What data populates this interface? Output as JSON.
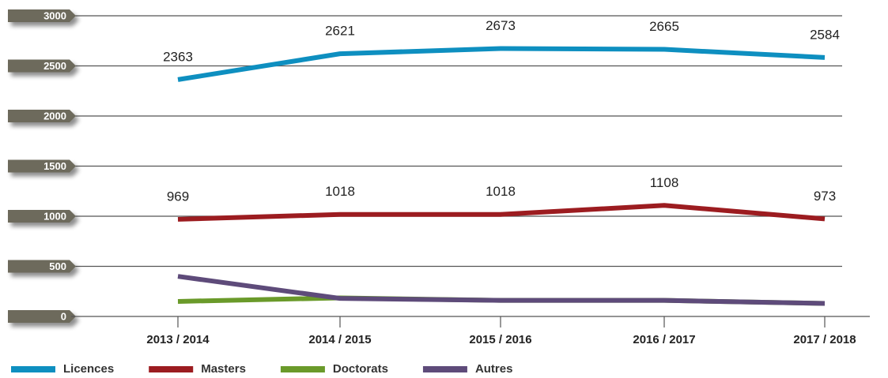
{
  "chart_data": {
    "type": "line",
    "categories": [
      "2013 / 2014",
      "2014 / 2015",
      "2015 / 2016",
      "2016 / 2017",
      "2017 / 2018"
    ],
    "series": [
      {
        "name": "Licences",
        "color": "#0e8fc0",
        "values": [
          2363,
          2621,
          2673,
          2665,
          2584
        ],
        "labels": true
      },
      {
        "name": "Masters",
        "color": "#9c1c20",
        "values": [
          969,
          1018,
          1018,
          1108,
          973
        ],
        "labels": true
      },
      {
        "name": "Doctorats",
        "color": "#6a9a2a",
        "values": [
          150,
          185,
          160,
          160,
          130
        ],
        "labels": false
      },
      {
        "name": "Autres",
        "color": "#5e4b7a",
        "values": [
          400,
          180,
          160,
          160,
          130
        ],
        "labels": false
      }
    ],
    "ylim": [
      0,
      3000
    ],
    "yticks": [
      0,
      500,
      1000,
      1500,
      2000,
      2500,
      3000
    ],
    "grid": true,
    "legend": "bottom"
  }
}
